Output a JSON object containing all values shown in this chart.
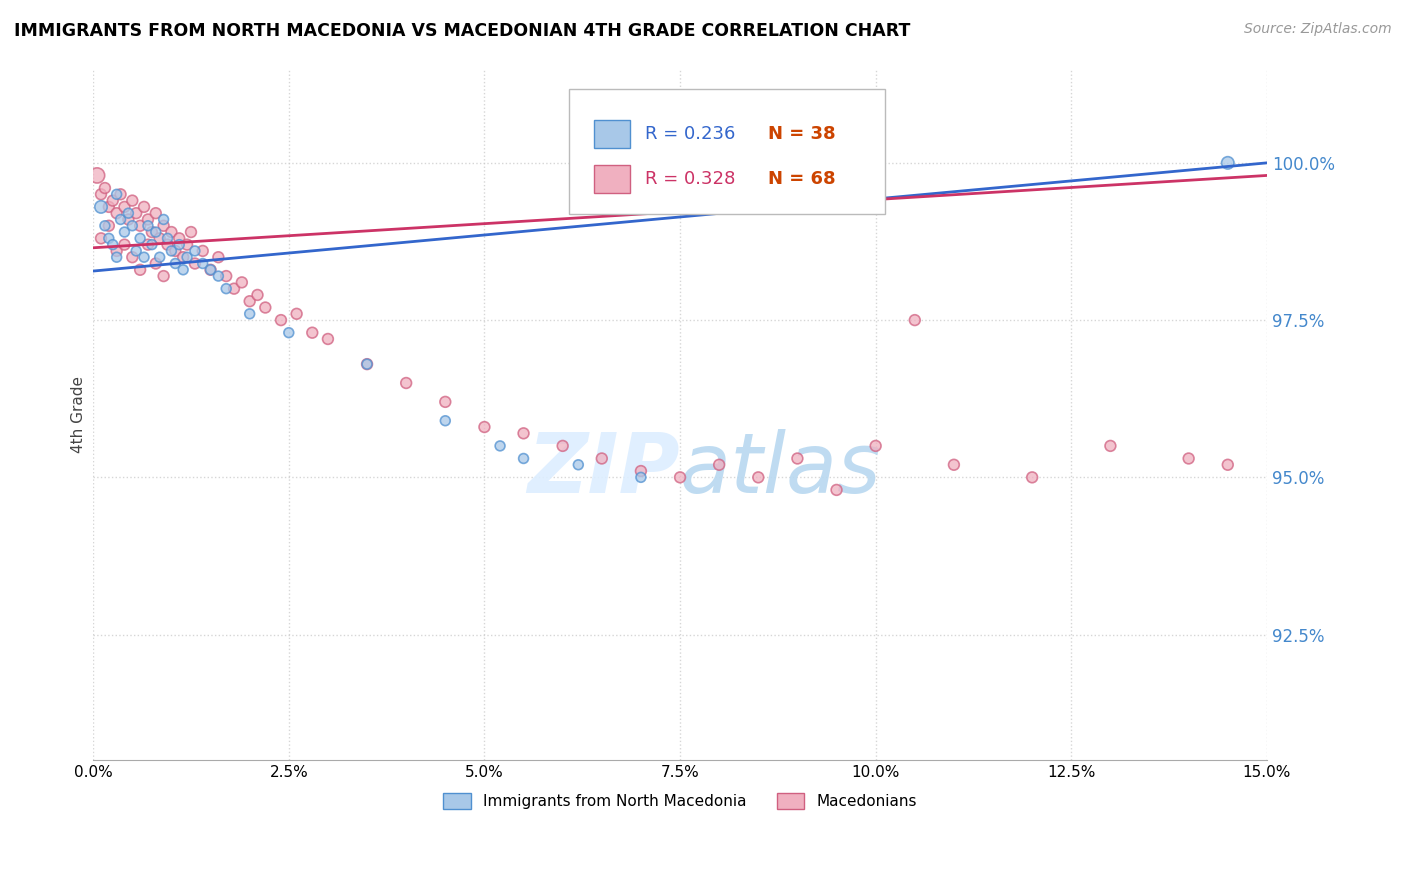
{
  "title": "IMMIGRANTS FROM NORTH MACEDONIA VS MACEDONIAN 4TH GRADE CORRELATION CHART",
  "source": "Source: ZipAtlas.com",
  "ylabel": "4th Grade",
  "y_tick_values": [
    100.0,
    97.5,
    95.0,
    92.5
  ],
  "xlim": [
    0.0,
    15.0
  ],
  "ylim": [
    90.5,
    101.5
  ],
  "blue_color": "#a8c8e8",
  "pink_color": "#f0b0c0",
  "blue_edge_color": "#5090d0",
  "pink_edge_color": "#d06080",
  "blue_line_color": "#3366cc",
  "pink_line_color": "#cc3366",
  "blue_R_color": "#3366cc",
  "pink_R_color": "#cc3366",
  "N_color": "#cc4400",
  "watermark_color": "#ddeeff",
  "background_color": "#ffffff",
  "grid_color": "#cccccc",
  "blue_scatter_x": [
    0.1,
    0.15,
    0.2,
    0.25,
    0.3,
    0.3,
    0.35,
    0.4,
    0.45,
    0.5,
    0.55,
    0.6,
    0.65,
    0.7,
    0.75,
    0.8,
    0.85,
    0.9,
    0.95,
    1.0,
    1.05,
    1.1,
    1.15,
    1.2,
    1.3,
    1.4,
    1.5,
    1.6,
    1.7,
    2.0,
    2.5,
    3.5,
    4.5,
    5.2,
    5.5,
    6.2,
    7.0,
    14.5
  ],
  "blue_scatter_y": [
    99.3,
    99.0,
    98.8,
    98.7,
    99.5,
    98.5,
    99.1,
    98.9,
    99.2,
    99.0,
    98.6,
    98.8,
    98.5,
    99.0,
    98.7,
    98.9,
    98.5,
    99.1,
    98.8,
    98.6,
    98.4,
    98.7,
    98.3,
    98.5,
    98.6,
    98.4,
    98.3,
    98.2,
    98.0,
    97.6,
    97.3,
    96.8,
    95.9,
    95.5,
    95.3,
    95.2,
    95.0,
    100.0
  ],
  "blue_scatter_s": [
    80,
    50,
    50,
    50,
    50,
    50,
    50,
    50,
    50,
    50,
    50,
    50,
    50,
    50,
    50,
    50,
    50,
    50,
    50,
    50,
    50,
    50,
    50,
    50,
    50,
    50,
    50,
    50,
    50,
    50,
    50,
    50,
    50,
    50,
    50,
    50,
    50,
    80
  ],
  "pink_scatter_x": [
    0.05,
    0.1,
    0.15,
    0.2,
    0.25,
    0.3,
    0.35,
    0.4,
    0.45,
    0.5,
    0.55,
    0.6,
    0.65,
    0.7,
    0.75,
    0.8,
    0.85,
    0.9,
    0.95,
    1.0,
    1.05,
    1.1,
    1.15,
    1.2,
    1.25,
    1.3,
    1.4,
    1.5,
    1.6,
    1.7,
    1.8,
    1.9,
    2.0,
    2.1,
    2.2,
    2.4,
    2.6,
    2.8,
    3.0,
    3.5,
    4.0,
    4.5,
    5.0,
    5.5,
    6.0,
    6.5,
    7.0,
    7.5,
    8.0,
    8.5,
    9.0,
    9.5,
    10.0,
    10.5,
    11.0,
    12.0,
    13.0,
    14.0,
    14.5,
    0.1,
    0.2,
    0.3,
    0.4,
    0.5,
    0.6,
    0.7,
    0.8,
    0.9
  ],
  "pink_scatter_y": [
    99.8,
    99.5,
    99.6,
    99.3,
    99.4,
    99.2,
    99.5,
    99.3,
    99.1,
    99.4,
    99.2,
    99.0,
    99.3,
    99.1,
    98.9,
    99.2,
    98.8,
    99.0,
    98.7,
    98.9,
    98.6,
    98.8,
    98.5,
    98.7,
    98.9,
    98.4,
    98.6,
    98.3,
    98.5,
    98.2,
    98.0,
    98.1,
    97.8,
    97.9,
    97.7,
    97.5,
    97.6,
    97.3,
    97.2,
    96.8,
    96.5,
    96.2,
    95.8,
    95.7,
    95.5,
    95.3,
    95.1,
    95.0,
    95.2,
    95.0,
    95.3,
    94.8,
    95.5,
    97.5,
    95.2,
    95.0,
    95.5,
    95.3,
    95.2,
    98.8,
    99.0,
    98.6,
    98.7,
    98.5,
    98.3,
    98.7,
    98.4,
    98.2
  ],
  "pink_scatter_s": [
    120,
    60,
    60,
    60,
    60,
    60,
    60,
    60,
    60,
    60,
    60,
    60,
    60,
    60,
    60,
    60,
    60,
    60,
    60,
    60,
    60,
    60,
    60,
    60,
    60,
    60,
    60,
    60,
    60,
    60,
    60,
    60,
    60,
    60,
    60,
    60,
    60,
    60,
    60,
    60,
    60,
    60,
    60,
    60,
    60,
    60,
    60,
    60,
    60,
    60,
    60,
    60,
    60,
    60,
    60,
    60,
    60,
    60,
    60,
    60,
    60,
    60,
    60,
    60,
    60,
    60,
    60,
    60
  ],
  "blue_trend_x": [
    0.0,
    15.0
  ],
  "blue_trend_y": [
    98.28,
    100.0
  ],
  "pink_trend_x": [
    0.0,
    15.0
  ],
  "pink_trend_y": [
    98.65,
    99.8
  ]
}
